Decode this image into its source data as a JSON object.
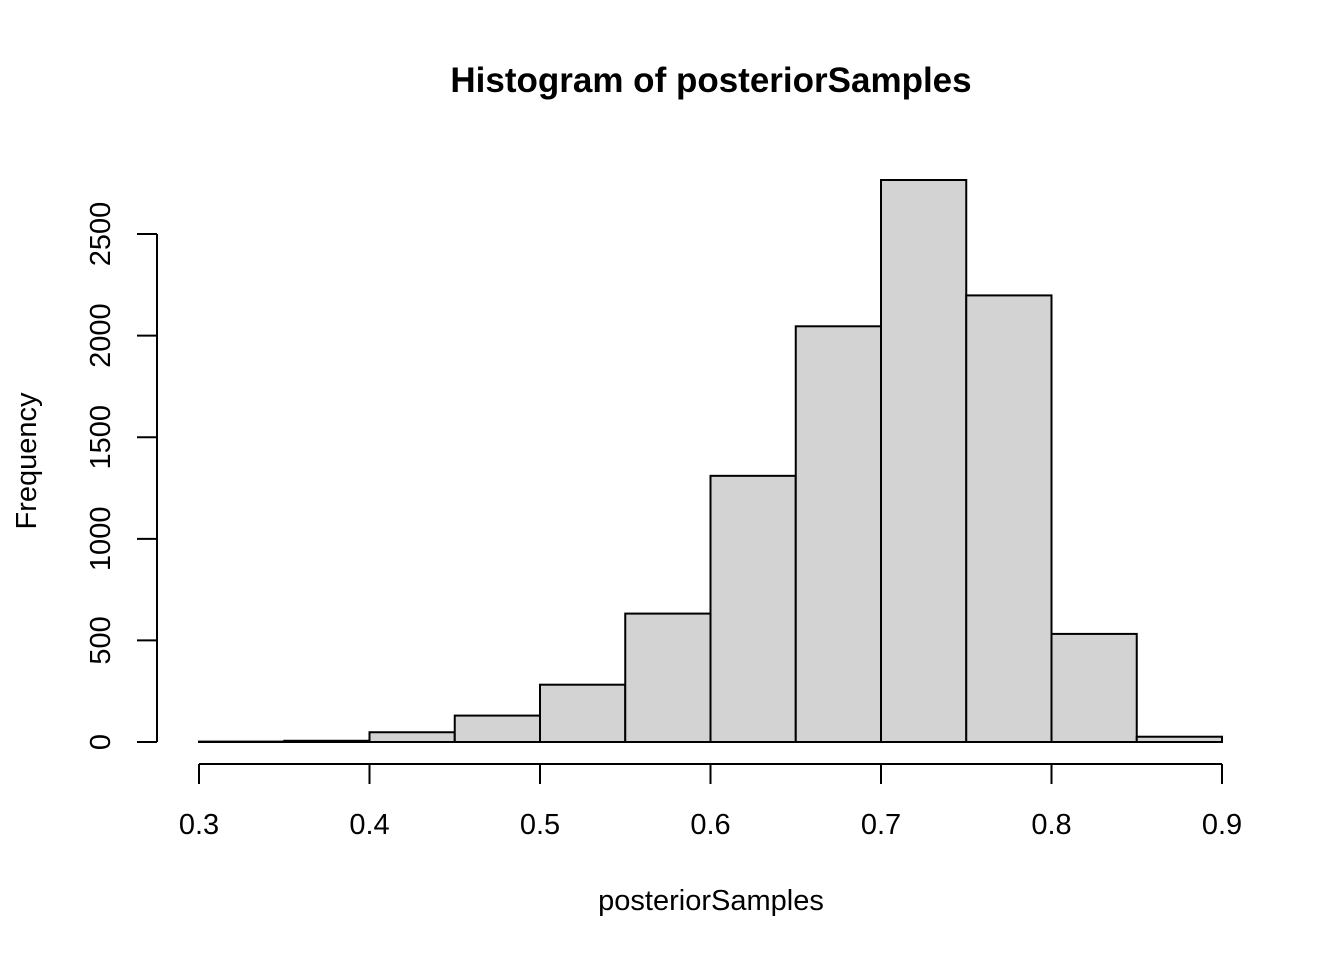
{
  "chart_data": {
    "type": "bar",
    "title": "Histogram of posteriorSamples",
    "xlabel": "posteriorSamples",
    "ylabel": "Frequency",
    "bin_edges": [
      0.3,
      0.35,
      0.4,
      0.45,
      0.5,
      0.55,
      0.6,
      0.65,
      0.7,
      0.75,
      0.8,
      0.85,
      0.9
    ],
    "values": [
      2,
      6,
      48,
      130,
      282,
      632,
      1310,
      2046,
      2766,
      2198,
      532,
      26
    ],
    "xlim": [
      0.3,
      0.9
    ],
    "ylim": [
      0,
      2766
    ],
    "x_ticks": [
      "0.3",
      "0.4",
      "0.5",
      "0.6",
      "0.7",
      "0.8",
      "0.9"
    ],
    "y_ticks": [
      "0",
      "500",
      "1000",
      "1500",
      "2000",
      "2500"
    ],
    "grid": false,
    "colors": {
      "bar_fill": "#d3d3d3",
      "bar_stroke": "#000000"
    }
  }
}
